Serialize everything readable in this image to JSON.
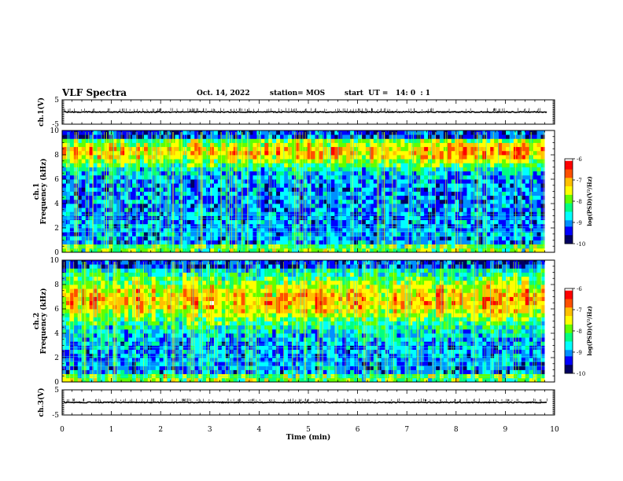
{
  "header": {
    "title": "VLF Spectra",
    "date": "Oct. 14, 2022",
    "station": "station= MOS",
    "start": "start  UT =   14: 0  : 1"
  },
  "colors": {
    "cmap": [
      "#000000",
      "#000060",
      "#0000ff",
      "#0090ff",
      "#00ffff",
      "#00ff80",
      "#60ff00",
      "#ffff00",
      "#ffc000",
      "#ff5000",
      "#ff0000",
      "#ffffff"
    ]
  },
  "chart_data": [
    {
      "id": "ch1-waveform",
      "type": "line",
      "ylabel": "ch.1(V)",
      "ylim": [
        -5,
        5
      ],
      "yticks": [
        "5",
        "-5"
      ],
      "xlim": [
        0,
        10
      ],
      "level": 0
    },
    {
      "id": "ch1-spectrogram",
      "type": "heatmap",
      "ylabel": "ch.1\nFrequency (kHz)",
      "ylim": [
        0,
        10
      ],
      "yticks": [
        "0",
        "2",
        "4",
        "6",
        "8",
        "10"
      ],
      "xlim": [
        0,
        10
      ],
      "data_end_min": 9.8,
      "dominant_band_khz": [
        7.5,
        9.0
      ],
      "colorbar": {
        "label": "log(PSD)(V²/Hz)",
        "range": [
          -10,
          -6
        ],
        "ticks": [
          "-6",
          "-7",
          "-8",
          "-9",
          "-10"
        ]
      }
    },
    {
      "id": "ch2-spectrogram",
      "type": "heatmap",
      "ylabel": "ch.2\nFrequency (kHz)",
      "ylim": [
        0,
        10
      ],
      "yticks": [
        "0",
        "2",
        "4",
        "6",
        "8",
        "10"
      ],
      "xlim": [
        0,
        10
      ],
      "data_end_min": 9.8,
      "dominant_band_khz": [
        5.5,
        8.0
      ],
      "colorbar": {
        "label": "log(PSD)(V²/Hz)",
        "range": [
          -10,
          -6
        ],
        "ticks": [
          "-6",
          "-7",
          "-8",
          "-9",
          "-10"
        ]
      }
    },
    {
      "id": "ch3-waveform",
      "type": "line",
      "ylabel": "ch.3(V)",
      "ylim": [
        -5,
        5
      ],
      "yticks": [
        "5",
        "-5"
      ],
      "xlim": [
        0,
        10
      ],
      "level": 0
    }
  ],
  "xaxis": {
    "label": "Time (min)",
    "range": [
      0,
      10
    ],
    "ticks": [
      "0",
      "1",
      "2",
      "3",
      "4",
      "5",
      "6",
      "7",
      "8",
      "9",
      "10"
    ]
  }
}
